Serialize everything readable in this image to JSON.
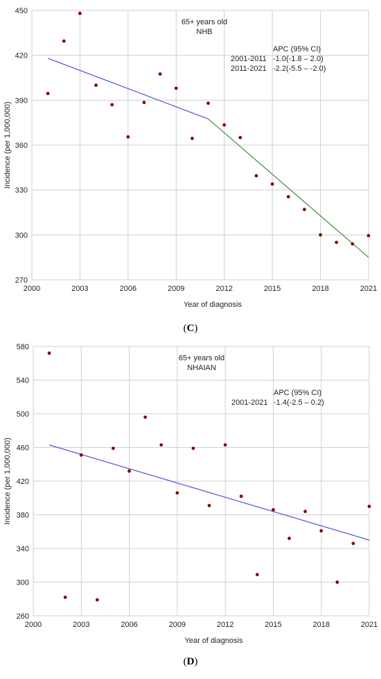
{
  "chart_data": [
    {
      "type": "scatter",
      "panel_label": "C",
      "title": "65+ years old",
      "subtitle": "NHB",
      "xlabel": "Year of diagnosis",
      "ylabel": "Incidence (per 1,000,000)",
      "xlim": [
        2000,
        2021
      ],
      "ylim": [
        270,
        450
      ],
      "xticks": [
        2000,
        2003,
        2006,
        2009,
        2012,
        2015,
        2018,
        2021
      ],
      "yticks": [
        270,
        300,
        330,
        360,
        390,
        420,
        450
      ],
      "grid": true,
      "point_color": "#8b0000",
      "points": {
        "x": [
          2001,
          2002,
          2003,
          2004,
          2005,
          2006,
          2007,
          2008,
          2009,
          2010,
          2011,
          2012,
          2013,
          2014,
          2015,
          2016,
          2017,
          2018,
          2019,
          2020,
          2021
        ],
        "y": [
          394.5,
          429.5,
          448,
          400,
          387,
          365.5,
          388.5,
          407.5,
          398,
          364.5,
          388,
          373.5,
          365,
          339.5,
          334,
          325.5,
          317,
          300,
          295,
          294,
          299.5
        ]
      },
      "trend_lines": [
        {
          "x": [
            2001,
            2011
          ],
          "y": [
            418,
            377.5
          ],
          "color": "#4a55d8"
        },
        {
          "x": [
            2011,
            2021
          ],
          "y": [
            377.5,
            285
          ],
          "color": "#3c8f3c"
        }
      ],
      "annotation": {
        "header": "APC (95% CI)",
        "rows": [
          {
            "period": "2001-2011",
            "value": "-1.0(-1.8 – 2.0)"
          },
          {
            "period": "2011-2021",
            "value": "-2.2(-5.5 – -2.0)"
          }
        ]
      }
    },
    {
      "type": "scatter",
      "panel_label": "D",
      "title": "65+ years old",
      "subtitle": "NHAIAN",
      "xlabel": "Year of diagnosis",
      "ylabel": "Incidence (per 1,000,000)",
      "xlim": [
        2000,
        2021
      ],
      "ylim": [
        260,
        580
      ],
      "xticks": [
        2000,
        2003,
        2006,
        2009,
        2012,
        2015,
        2018,
        2021
      ],
      "yticks": [
        260,
        300,
        340,
        380,
        420,
        460,
        500,
        540,
        580
      ],
      "grid": true,
      "point_color": "#8b0000",
      "points": {
        "x": [
          2001,
          2002,
          2003,
          2004,
          2005,
          2006,
          2007,
          2008,
          2009,
          2010,
          2011,
          2012,
          2013,
          2014,
          2015,
          2016,
          2017,
          2018,
          2019,
          2020,
          2021
        ],
        "y": [
          572,
          282,
          451,
          279,
          459,
          432,
          496,
          463,
          406,
          459,
          391,
          463,
          402,
          309,
          386,
          352,
          384,
          361,
          300,
          346,
          390
        ]
      },
      "trend_lines": [
        {
          "x": [
            2001,
            2021
          ],
          "y": [
            463,
            350
          ],
          "color": "#4a55d8"
        }
      ],
      "annotation": {
        "header": "APC (95% CI)",
        "rows": [
          {
            "period": "2001-2021",
            "value": "-1.4(-2.5 – 0.2)"
          }
        ]
      }
    }
  ]
}
